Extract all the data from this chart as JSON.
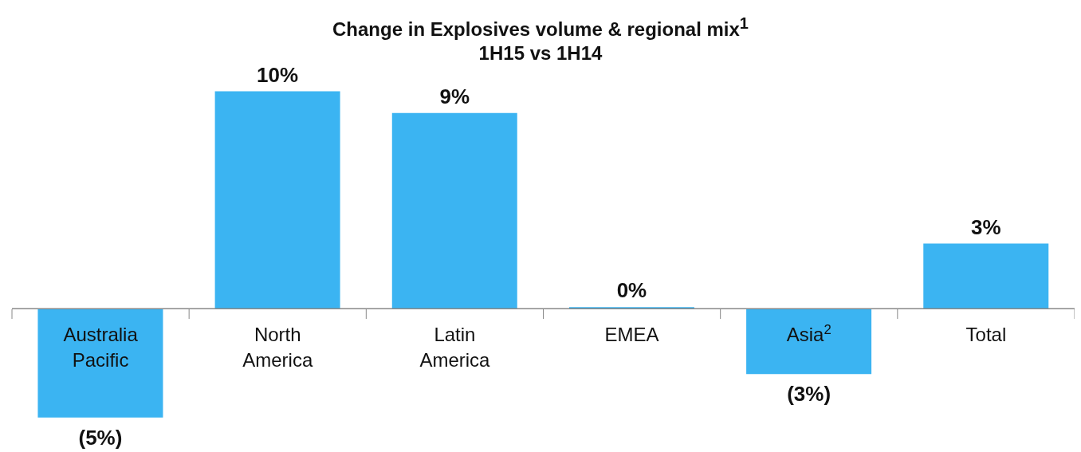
{
  "chart_data": {
    "type": "bar",
    "title": "Change in Explosives volume & regional mix$^{1}$",
    "subtitle": "1H15 vs 1H14",
    "categories": [
      "Australia Pacific",
      "North America",
      "Latin America",
      "EMEA",
      "Asia$^{2}$",
      "Total"
    ],
    "values": [
      -5,
      10,
      9,
      0,
      -3,
      3
    ],
    "value_labels": [
      "(5%)",
      "10%",
      "9%",
      "0%",
      "(3%)",
      "3%"
    ],
    "color": "#3bb4f2",
    "grid": false,
    "legend": false
  }
}
